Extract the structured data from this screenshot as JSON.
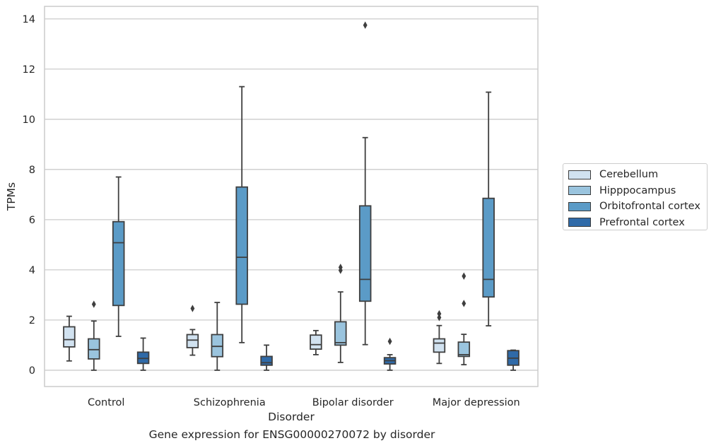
{
  "caption": "Gene expression for ENSG00000270072 by disorder",
  "chart_data": {
    "type": "box",
    "title": "",
    "xlabel": "Disorder",
    "ylabel": "TPMs",
    "ylim": [
      -0.65,
      14.5
    ],
    "yticks": [
      0,
      2,
      4,
      6,
      8,
      10,
      12,
      14
    ],
    "grid": true,
    "legend_position": "right",
    "categories": [
      "Control",
      "Schizophrenia",
      "Bipolar disorder",
      "Major depression"
    ],
    "series": [
      {
        "name": "Cerebellum",
        "color": "#d1e2f0",
        "boxes": [
          {
            "whislo": 0.37,
            "q1": 0.93,
            "med": 1.22,
            "q3": 1.73,
            "whishi": 2.15,
            "fliers": []
          },
          {
            "whislo": 0.6,
            "q1": 0.9,
            "med": 1.2,
            "q3": 1.42,
            "whishi": 1.62,
            "fliers": [
              2.46
            ]
          },
          {
            "whislo": 0.62,
            "q1": 0.84,
            "med": 1.02,
            "q3": 1.4,
            "whishi": 1.58,
            "fliers": []
          },
          {
            "whislo": 0.27,
            "q1": 0.72,
            "med": 1.08,
            "q3": 1.25,
            "whishi": 1.78,
            "fliers": [
              2.1,
              2.25
            ]
          }
        ]
      },
      {
        "name": "Hipppocampus",
        "color": "#9ac4de",
        "boxes": [
          {
            "whislo": 0.0,
            "q1": 0.45,
            "med": 0.82,
            "q3": 1.25,
            "whishi": 1.96,
            "fliers": [
              2.63
            ]
          },
          {
            "whislo": 0.0,
            "q1": 0.54,
            "med": 0.95,
            "q3": 1.42,
            "whishi": 2.7,
            "fliers": []
          },
          {
            "whislo": 0.31,
            "q1": 1.0,
            "med": 1.1,
            "q3": 1.93,
            "whishi": 3.12,
            "fliers": [
              3.98,
              4.1
            ]
          },
          {
            "whislo": 0.22,
            "q1": 0.55,
            "med": 0.62,
            "q3": 1.12,
            "whishi": 1.43,
            "fliers": [
              2.66,
              3.75
            ]
          }
        ]
      },
      {
        "name": "Orbitofrontal cortex",
        "color": "#5b9bc7",
        "boxes": [
          {
            "whislo": 1.35,
            "q1": 2.58,
            "med": 5.08,
            "q3": 5.92,
            "whishi": 7.7,
            "fliers": []
          },
          {
            "whislo": 1.1,
            "q1": 2.63,
            "med": 4.5,
            "q3": 7.3,
            "whishi": 11.3,
            "fliers": []
          },
          {
            "whislo": 1.02,
            "q1": 2.75,
            "med": 3.62,
            "q3": 6.55,
            "whishi": 9.27,
            "fliers": [
              13.75
            ]
          },
          {
            "whislo": 1.77,
            "q1": 2.92,
            "med": 3.62,
            "q3": 6.85,
            "whishi": 11.08,
            "fliers": []
          }
        ]
      },
      {
        "name": "Prefrontal cortex",
        "color": "#2f6aa8",
        "boxes": [
          {
            "whislo": 0.0,
            "q1": 0.27,
            "med": 0.47,
            "q3": 0.72,
            "whishi": 1.28,
            "fliers": []
          },
          {
            "whislo": 0.0,
            "q1": 0.2,
            "med": 0.3,
            "q3": 0.55,
            "whishi": 1.0,
            "fliers": []
          },
          {
            "whislo": 0.0,
            "q1": 0.25,
            "med": 0.38,
            "q3": 0.5,
            "whishi": 0.62,
            "fliers": [
              1.15
            ]
          },
          {
            "whislo": 0.0,
            "q1": 0.2,
            "med": 0.48,
            "q3": 0.78,
            "whishi": 0.8,
            "fliers": []
          }
        ]
      }
    ]
  }
}
